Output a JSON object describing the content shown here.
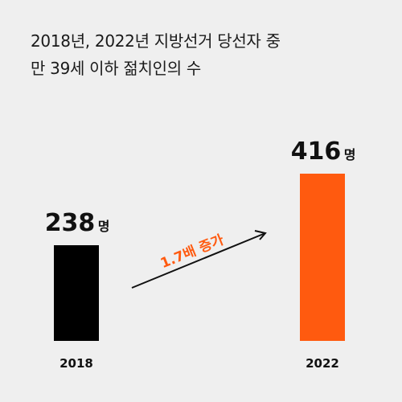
{
  "title_lines": [
    "2018년, 2022년 지방선거 당선자 중",
    "만 39세 이하 젊치인의 수"
  ],
  "unit": "명",
  "annotation": "1.7배 증가",
  "colors": {
    "background": "#efefef",
    "bar_2018": "#000000",
    "bar_2022": "#ff5a0f",
    "accent": "#ff5a0f",
    "text": "#111111"
  },
  "chart_data": {
    "type": "bar",
    "title": "2018년, 2022년 지방선거 당선자 중 만 39세 이하 젊치인의 수",
    "categories": [
      "2018",
      "2022"
    ],
    "values": [
      238,
      416
    ],
    "unit": "명",
    "annotation": "1.7배 증가",
    "xlabel": "",
    "ylabel": "",
    "grid": false,
    "legend": "none"
  }
}
